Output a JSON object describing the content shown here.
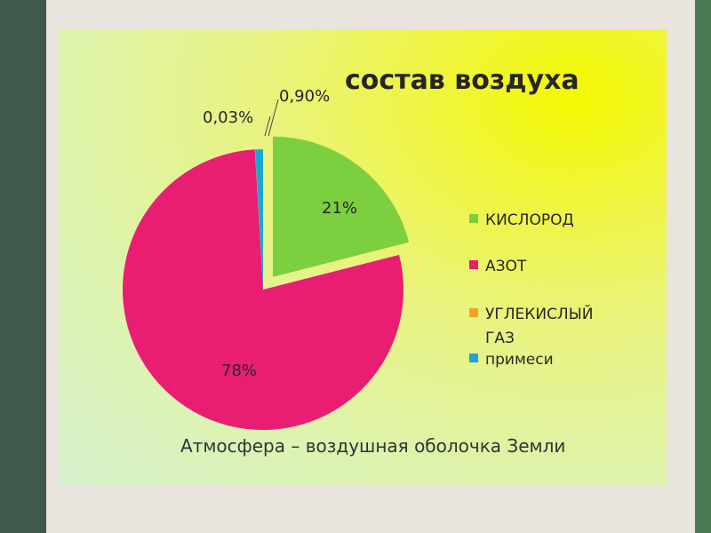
{
  "chart_data": {
    "type": "pie",
    "title": "состав воздуха",
    "caption": "Атмосфера – воздушная оболочка Земли",
    "series": [
      {
        "name": "КИСЛОРОД",
        "value": 21,
        "label": "21%",
        "color": "#7ccf3e",
        "exploded": true
      },
      {
        "name": "АЗОТ",
        "value": 78,
        "label": "78%",
        "color": "#e91e72",
        "exploded": false
      },
      {
        "name": "УГЛЕКИСЛЫЙ ГАЗ",
        "value": 0.03,
        "label": "0,03%",
        "color": "#f6a21a",
        "exploded": false
      },
      {
        "name": "примеси",
        "value": 0.9,
        "label": "0,90%",
        "color": "#1aa7d4",
        "exploded": false
      }
    ],
    "legend_position": "right"
  },
  "colors": {
    "left_band": "#3f5a4d",
    "right_band": "#4a7a52",
    "page_background": "#e9e4dd"
  }
}
